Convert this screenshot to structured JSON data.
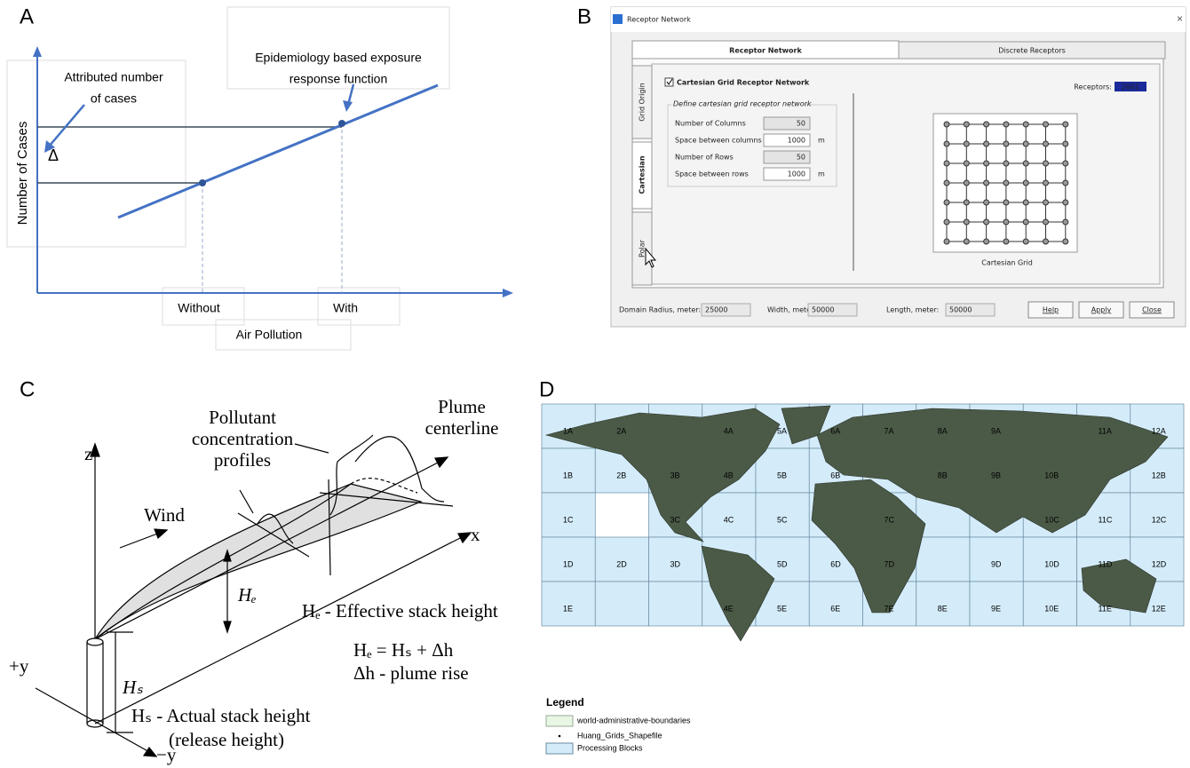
{
  "panels": {
    "a": {
      "letter": "A",
      "y_axis_label": "Number of Cases",
      "attributed": [
        "Attributed number",
        "of cases"
      ],
      "delta": "Δ",
      "erf": [
        "Epidemiology based exposure",
        "response function"
      ],
      "without": "Without",
      "with": "With",
      "x_axis_label": "Air Pollution"
    },
    "b": {
      "letter": "B",
      "window_title": "Receptor Network",
      "tabs": [
        "Receptor Network",
        "Discrete Receptors"
      ],
      "side_tabs": [
        "Grid Origin",
        "Cartesian",
        "Polar"
      ],
      "checkbox": "Cartesian Grid Receptor Network",
      "group": "Define cartesian grid receptor network",
      "fields": [
        {
          "label": "Number of Columns",
          "value": 50
        },
        {
          "label": "Space between columns",
          "value": 1000,
          "unit": "m"
        },
        {
          "label": "Number of Rows",
          "value": 50
        },
        {
          "label": "Space between rows",
          "value": 1000,
          "unit": "m"
        }
      ],
      "receptors_label": "Receptors:",
      "receptors": 2601,
      "grid_caption": "Cartesian Grid",
      "footer": [
        {
          "label": "Domain Radius, meter:",
          "value": 25000
        },
        {
          "label": "Width, meter:",
          "value": 50000
        },
        {
          "label": "Length, meter:",
          "value": 50000
        }
      ],
      "buttons": [
        "Help",
        "Apply",
        "Close"
      ]
    },
    "c": {
      "letter": "C",
      "z": "z",
      "x": "x",
      "profiles": [
        "Pollutant",
        "concentration",
        "profiles"
      ],
      "centerline": [
        "Plume",
        "centerline"
      ],
      "wind": "Wind",
      "he": "Hₑ",
      "hs": "Hₛ",
      "plus_y": "+y",
      "minus_y": "−y",
      "he_def": "Hₑ - Effective stack height",
      "formula": "Hₑ = Hₛ + Δh",
      "rise": "Δh - plume rise",
      "hs_def": "Hₛ - Actual stack height",
      "release": "(release height)"
    },
    "d": {
      "letter": "D",
      "cells": [
        "1A",
        "2A",
        "4A",
        "5A",
        "6A",
        "7A",
        "8A",
        "9A",
        "11A",
        "12A",
        "1B",
        "2B",
        "3B",
        "4B",
        "5B",
        "6B",
        "8B",
        "9B",
        "10B",
        "12B",
        "1C",
        "3C",
        "4C",
        "5C",
        "7C",
        "10C",
        "11C",
        "12C",
        "1D",
        "2D",
        "3D",
        "5D",
        "6D",
        "7D",
        "9D",
        "10D",
        "11D",
        "12D",
        "1E",
        "4E",
        "5E",
        "6E",
        "7E",
        "8E",
        "9E",
        "10E",
        "11E",
        "12E"
      ],
      "legend_title": "Legend",
      "legend": [
        "world-administrative-boundaries",
        "Huang_Grids_Shapefile",
        "Processing Blocks"
      ]
    }
  }
}
